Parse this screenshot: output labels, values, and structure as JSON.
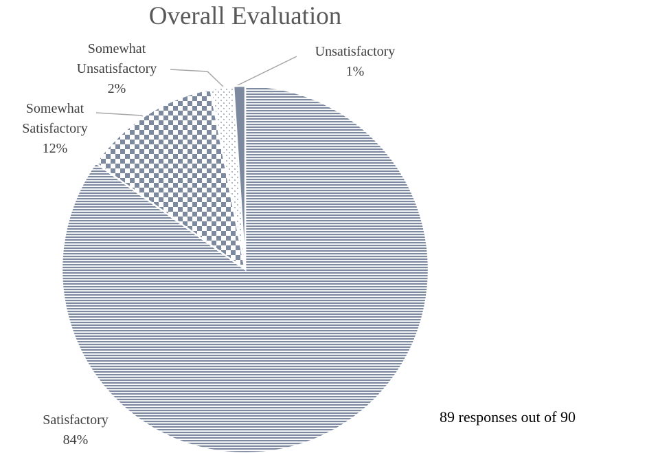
{
  "chart_data": {
    "type": "pie",
    "title": "Overall Evaluation",
    "categories": [
      "Satisfactory",
      "Somewhat Satisfactory",
      "Somewhat Unsatisfactory",
      "Unsatisfactory"
    ],
    "values": [
      84,
      12,
      2,
      1
    ],
    "value_labels": [
      "84%",
      "12%",
      "2%",
      "1%"
    ],
    "color": "#7c899f",
    "fills": [
      "horizontal",
      "checker",
      "dots",
      "solid"
    ],
    "annotation": "89 responses out of 90"
  }
}
